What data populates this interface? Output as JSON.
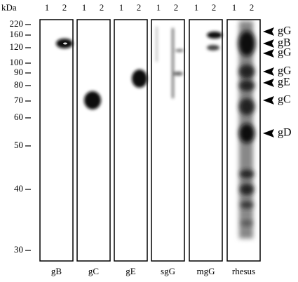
{
  "axis_unit": "kDa",
  "markers": [
    220,
    160,
    120,
    100,
    90,
    80,
    70,
    60,
    50,
    40,
    30
  ],
  "panels": [
    {
      "label": "gB",
      "lanes": [
        "1",
        "2"
      ]
    },
    {
      "label": "gC",
      "lanes": [
        "1",
        "2"
      ]
    },
    {
      "label": "gE",
      "lanes": [
        "1",
        "2"
      ]
    },
    {
      "label": "sgG",
      "lanes": [
        "1",
        "2"
      ]
    },
    {
      "label": "mgG",
      "lanes": [
        "1",
        "2"
      ]
    },
    {
      "label": "rhesus",
      "lanes": [
        "1",
        "2"
      ]
    }
  ],
  "annotations": [
    "gG",
    "gB",
    "gG",
    "gG",
    "gE",
    "gC",
    "gD"
  ]
}
